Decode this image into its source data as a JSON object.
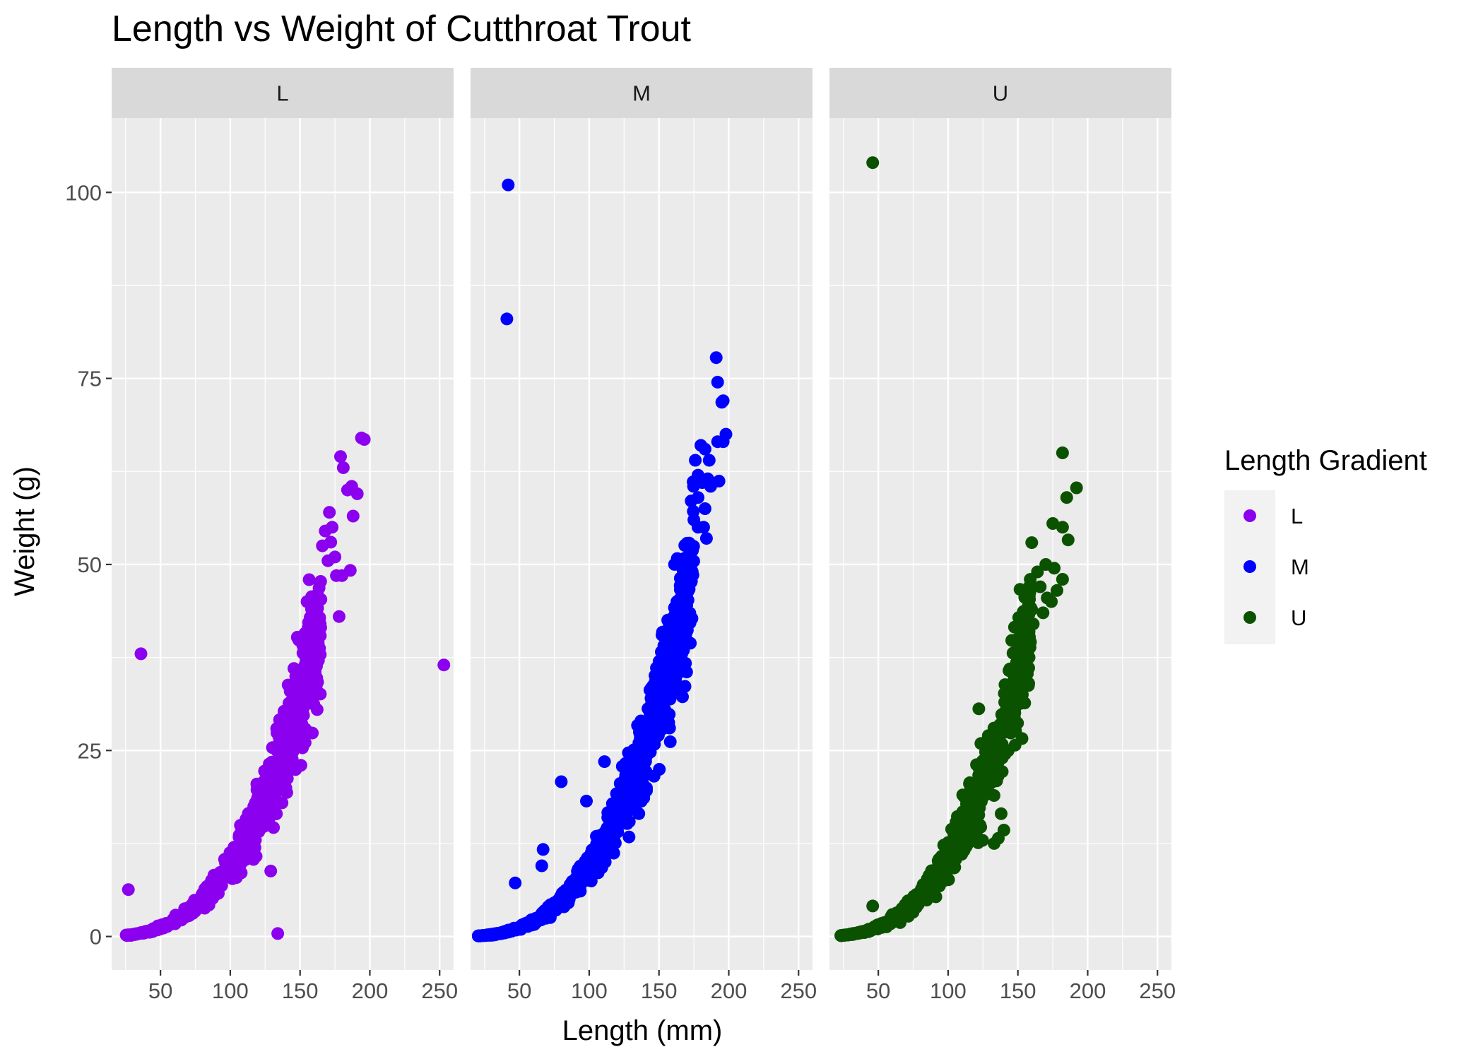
{
  "chart_data": {
    "type": "scatter",
    "title": "Length vs Weight of Cutthroat Trout",
    "xlabel": "Length (mm)",
    "ylabel": "Weight (g)",
    "xlim": [
      15,
      260
    ],
    "ylim": [
      -4.5,
      110
    ],
    "x_ticks": [
      50,
      100,
      150,
      200,
      250
    ],
    "y_ticks": [
      0,
      25,
      50,
      75,
      100
    ],
    "x_tick_labels": [
      "50",
      "100",
      "150",
      "200",
      "250"
    ],
    "y_tick_labels": [
      "0",
      "25",
      "50",
      "75",
      "100"
    ],
    "grid": true,
    "facet_by": "Length Gradient",
    "legend": {
      "title": "Length Gradient",
      "position": "right",
      "entries": [
        {
          "label": "L",
          "color": "#8b00ee"
        },
        {
          "label": "M",
          "color": "#0000ff"
        },
        {
          "label": "U",
          "color": "#0b5200"
        }
      ]
    },
    "facets": [
      {
        "label": "L",
        "color": "#8b00ee",
        "curve": {
          "x_min": 25,
          "x_max": 165,
          "coef": 9.5e-06,
          "exp": 3.0
        },
        "outliers": [
          [
            36,
            38
          ],
          [
            27,
            6.3
          ],
          [
            253,
            36.5
          ],
          [
            129,
            8.8
          ],
          [
            134,
            0.4
          ],
          [
            179,
            64.5
          ],
          [
            181,
            63
          ],
          [
            194,
            67
          ],
          [
            196,
            66.8
          ],
          [
            188,
            56.5
          ],
          [
            191,
            59.5
          ],
          [
            184,
            60
          ],
          [
            187,
            60.5
          ],
          [
            186,
            49.2
          ],
          [
            178,
            43
          ],
          [
            176,
            48.5
          ],
          [
            180,
            48.5
          ],
          [
            171,
            57
          ],
          [
            173,
            55
          ],
          [
            172,
            53
          ],
          [
            175,
            51
          ],
          [
            168,
            54.5
          ],
          [
            166,
            52.5
          ],
          [
            170,
            50.5
          ],
          [
            164,
            47.5
          ],
          [
            162,
            45.5
          ],
          [
            159,
            44
          ],
          [
            155,
            45
          ],
          [
            160,
            41.5
          ],
          [
            163,
            39.5
          ],
          [
            158,
            37.5
          ],
          [
            156,
            35
          ]
        ]
      },
      {
        "label": "M",
        "color": "#0000ff",
        "curve": {
          "x_min": 20,
          "x_max": 175,
          "coef": 9.3e-06,
          "exp": 3.0
        },
        "outliers": [
          [
            42,
            101
          ],
          [
            41,
            83
          ],
          [
            191,
            77.8
          ],
          [
            192,
            74.5
          ],
          [
            196,
            72
          ],
          [
            195,
            71.8
          ],
          [
            198,
            67.5
          ],
          [
            196,
            66.5
          ],
          [
            192,
            66.5
          ],
          [
            180,
            66
          ],
          [
            183,
            65.5
          ],
          [
            176,
            64
          ],
          [
            186,
            64
          ],
          [
            185,
            61.5
          ],
          [
            181,
            61
          ],
          [
            187,
            60.5
          ],
          [
            193,
            61.2
          ],
          [
            178,
            62
          ],
          [
            178,
            59
          ],
          [
            183,
            57.5
          ],
          [
            175,
            56
          ],
          [
            178,
            55
          ],
          [
            182,
            55
          ],
          [
            184,
            53.5
          ],
          [
            80,
            20.8
          ],
          [
            114,
            14.2
          ],
          [
            98,
            18.2
          ],
          [
            67,
            11.7
          ],
          [
            66,
            9.5
          ],
          [
            47,
            7.2
          ],
          [
            111,
            23.5
          ],
          [
            170,
            48.5
          ],
          [
            168,
            50.5
          ],
          [
            173,
            52
          ]
        ]
      },
      {
        "label": "U",
        "color": "#0b5200",
        "curve": {
          "x_min": 22,
          "x_max": 160,
          "coef": 1.05e-05,
          "exp": 3.0
        },
        "outliers": [
          [
            46,
            104
          ],
          [
            46,
            4.1
          ],
          [
            182,
            65
          ],
          [
            192,
            60.3
          ],
          [
            185,
            59
          ],
          [
            175,
            55.5
          ],
          [
            182,
            55
          ],
          [
            186,
            53.3
          ],
          [
            170,
            50
          ],
          [
            176,
            49.5
          ],
          [
            182,
            48
          ],
          [
            178,
            46.5
          ],
          [
            174,
            45
          ],
          [
            171,
            45.5
          ],
          [
            164,
            49
          ],
          [
            166,
            47
          ],
          [
            168,
            43.5
          ],
          [
            122,
            30.6
          ],
          [
            140,
            14.3
          ],
          [
            136,
            13.2
          ],
          [
            133,
            12.5
          ],
          [
            138,
            16.5
          ],
          [
            161,
            42
          ],
          [
            158,
            41
          ]
        ]
      }
    ]
  }
}
